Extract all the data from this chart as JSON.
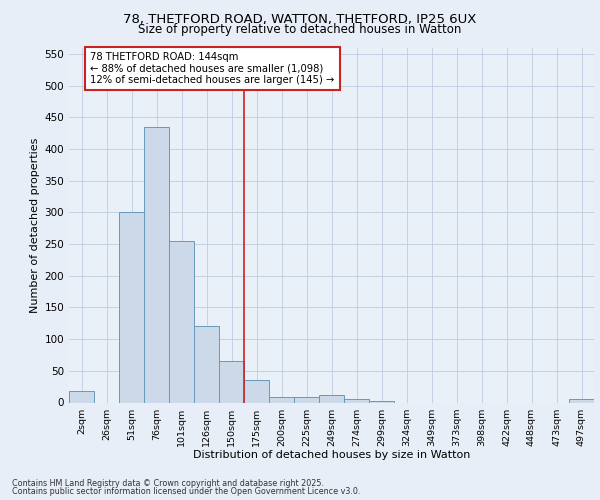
{
  "title_line1": "78, THETFORD ROAD, WATTON, THETFORD, IP25 6UX",
  "title_line2": "Size of property relative to detached houses in Watton",
  "xlabel": "Distribution of detached houses by size in Watton",
  "ylabel": "Number of detached properties",
  "categories": [
    "2sqm",
    "26sqm",
    "51sqm",
    "76sqm",
    "101sqm",
    "126sqm",
    "150sqm",
    "175sqm",
    "200sqm",
    "225sqm",
    "249sqm",
    "274sqm",
    "299sqm",
    "324sqm",
    "349sqm",
    "373sqm",
    "398sqm",
    "422sqm",
    "448sqm",
    "473sqm",
    "497sqm"
  ],
  "values": [
    18,
    0,
    300,
    435,
    255,
    120,
    65,
    35,
    8,
    8,
    12,
    5,
    3,
    0,
    0,
    0,
    0,
    0,
    0,
    0,
    5
  ],
  "bar_color": "#ccd9e8",
  "bar_edge_color": "#6699bb",
  "vline_x": 6.5,
  "vline_color": "#cc2222",
  "annotation_text": "78 THETFORD ROAD: 144sqm\n← 88% of detached houses are smaller (1,098)\n12% of semi-detached houses are larger (145) →",
  "annotation_box_facecolor": "#ffffff",
  "annotation_box_edgecolor": "#cc2222",
  "ylim": [
    0,
    560
  ],
  "yticks": [
    0,
    50,
    100,
    150,
    200,
    250,
    300,
    350,
    400,
    450,
    500,
    550
  ],
  "footer_line1": "Contains HM Land Registry data © Crown copyright and database right 2025.",
  "footer_line2": "Contains public sector information licensed under the Open Government Licence v3.0.",
  "bg_color": "#e8eef8",
  "plot_bg_color": "#eaf0f8",
  "grid_color": "#c0cce0"
}
